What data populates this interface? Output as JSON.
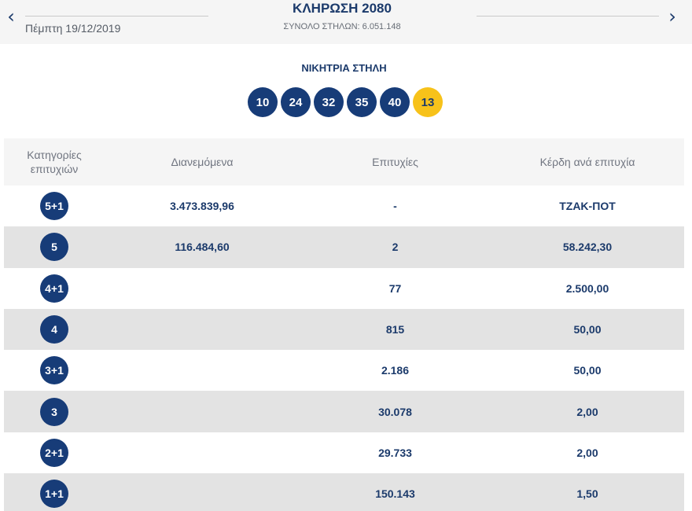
{
  "header": {
    "prev_icon": "‹",
    "next_icon": "›",
    "date": "Πέμπτη 19/12/2019",
    "draw_title": "ΚΛΗΡΩΣΗ 2080",
    "total_columns": "ΣΥΝΟΛΟ ΣΤΗΛΩΝ: 6.051.148"
  },
  "winning": {
    "title": "ΝΙΚΗΤΡΙΑ ΣΤΗΛΗ",
    "numbers": [
      "10",
      "24",
      "32",
      "35",
      "40"
    ],
    "joker": "13"
  },
  "table": {
    "headers": {
      "category_line1": "Κατηγορίες",
      "category_line2": "επιτυχιών",
      "distributed": "Διανεμόμενα",
      "winners": "Επιτυχίες",
      "prize": "Κέρδη ανά επιτυχία"
    },
    "rows": [
      {
        "category": "5+1",
        "distributed": "3.473.839,96",
        "winners": "-",
        "prize": "ΤΖΑΚ-ΠΟΤ"
      },
      {
        "category": "5",
        "distributed": "116.484,60",
        "winners": "2",
        "prize": "58.242,30"
      },
      {
        "category": "4+1",
        "distributed": "",
        "winners": "77",
        "prize": "2.500,00"
      },
      {
        "category": "4",
        "distributed": "",
        "winners": "815",
        "prize": "50,00"
      },
      {
        "category": "3+1",
        "distributed": "",
        "winners": "2.186",
        "prize": "50,00"
      },
      {
        "category": "3",
        "distributed": "",
        "winners": "30.078",
        "prize": "2,00"
      },
      {
        "category": "2+1",
        "distributed": "",
        "winners": "29.733",
        "prize": "2,00"
      },
      {
        "category": "1+1",
        "distributed": "",
        "winners": "150.143",
        "prize": "1,50"
      }
    ]
  },
  "colors": {
    "ball": "#173c78",
    "joker_ball": "#f7c21a",
    "text_primary": "#1b3a6b",
    "row_alt": "#e3e3e3",
    "header_bg": "#f5f5f5"
  }
}
